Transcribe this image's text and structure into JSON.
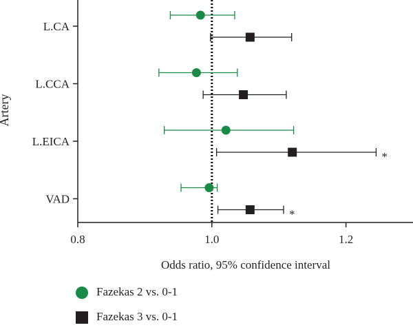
{
  "chart_data": {
    "type": "forest",
    "ylabel": "Artery",
    "xlabel": "Odds ratio, 95% confidence interval",
    "xlim": [
      0.8,
      1.3
    ],
    "xticks": [
      0.8,
      1.0,
      1.2
    ],
    "xtick_labels": [
      "0.8",
      "1.0",
      "1.2"
    ],
    "reference_line": 1.0,
    "categories": [
      "L.CA",
      "L.CCA",
      "L.EICA",
      "VAD"
    ],
    "series": [
      {
        "name": "Fazekas 2 vs. 0-1",
        "marker": "circle",
        "color": "#1a8a47",
        "points": [
          {
            "category": "L.CA",
            "or": 0.983,
            "lo": 0.938,
            "hi": 1.034,
            "annotation": ""
          },
          {
            "category": "L.CCA",
            "or": 0.977,
            "lo": 0.921,
            "hi": 1.038,
            "annotation": ""
          },
          {
            "category": "L.EICA",
            "or": 1.021,
            "lo": 0.929,
            "hi": 1.122,
            "annotation": ""
          },
          {
            "category": "VAD",
            "or": 0.996,
            "lo": 0.954,
            "hi": 1.008,
            "annotation": ""
          }
        ]
      },
      {
        "name": "Fazekas 3 vs. 0-1",
        "marker": "square",
        "color": "#231f20",
        "points": [
          {
            "category": "L.CA",
            "or": 1.057,
            "lo": 0.998,
            "hi": 1.119,
            "annotation": ""
          },
          {
            "category": "L.CCA",
            "or": 1.047,
            "lo": 0.987,
            "hi": 1.111,
            "annotation": ""
          },
          {
            "category": "L.EICA",
            "or": 1.12,
            "lo": 1.007,
            "hi": 1.245,
            "annotation": "*"
          },
          {
            "category": "VAD",
            "or": 1.057,
            "lo": 1.009,
            "hi": 1.107,
            "annotation": "*"
          }
        ]
      }
    ]
  }
}
